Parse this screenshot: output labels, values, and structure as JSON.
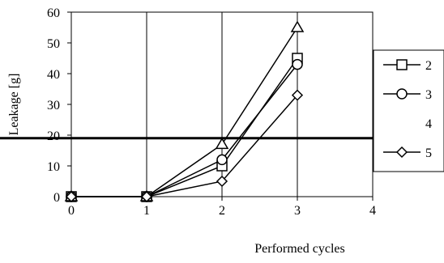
{
  "chart_data": {
    "type": "line",
    "title": "",
    "xlabel": "Performed cycles",
    "ylabel": "Leakage [g]",
    "xlim": [
      0,
      4
    ],
    "ylim": [
      0,
      60
    ],
    "x_ticks": [
      0,
      1,
      2,
      3,
      4
    ],
    "y_ticks": [
      0,
      10,
      20,
      30,
      40,
      50,
      60
    ],
    "grid": "vertical",
    "legend_position": "right",
    "series": [
      {
        "name": "2",
        "marker": "square",
        "x": [
          0,
          1,
          2,
          3
        ],
        "values": [
          0,
          0,
          10,
          45
        ]
      },
      {
        "name": "3",
        "marker": "circle",
        "x": [
          0,
          1,
          2,
          3
        ],
        "values": [
          0,
          0,
          12,
          43
        ]
      },
      {
        "name": "4",
        "marker": "triangle",
        "x": [
          0,
          1,
          2,
          3
        ],
        "values": [
          0,
          0,
          17,
          55
        ]
      },
      {
        "name": "5",
        "marker": "diamond",
        "x": [
          0,
          1,
          2,
          3
        ],
        "values": [
          0,
          0,
          5,
          33
        ]
      }
    ],
    "reference_line": {
      "y": 19
    }
  }
}
